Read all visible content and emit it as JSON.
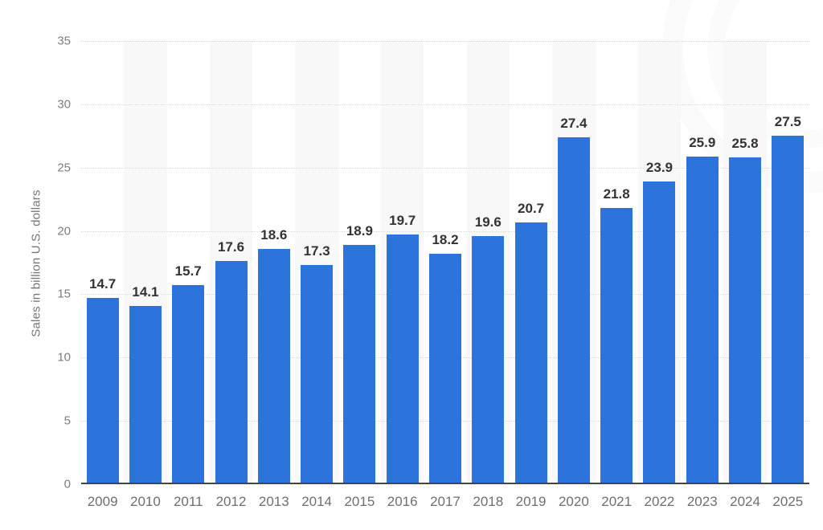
{
  "chart_data": {
    "type": "bar",
    "categories": [
      "2009",
      "2010",
      "2011",
      "2012",
      "2013",
      "2014",
      "2015",
      "2016",
      "2017",
      "2018",
      "2019",
      "2020",
      "2021",
      "2022",
      "2023",
      "2024",
      "2025"
    ],
    "values": [
      14.7,
      14.1,
      15.7,
      17.6,
      18.6,
      17.3,
      18.9,
      19.7,
      18.2,
      19.6,
      20.7,
      27.4,
      21.8,
      23.9,
      25.9,
      25.8,
      27.5
    ],
    "title": "",
    "xlabel": "",
    "ylabel": "Sales in billion U.S. dollars",
    "ylim": [
      0,
      35
    ],
    "yticks": [
      0,
      5,
      10,
      15,
      20,
      25,
      30,
      35
    ],
    "grid": "dotted-horizontal",
    "legend": "none",
    "colors": {
      "bar": "#2C74DB",
      "band": "#f8f8f8",
      "gridline": "#d9d9d9",
      "baseline": "#454545",
      "value_label": "#333333",
      "axis_tick": "#7d7d7d",
      "x_label": "#6e6e6e",
      "background": "#ffffff"
    }
  }
}
